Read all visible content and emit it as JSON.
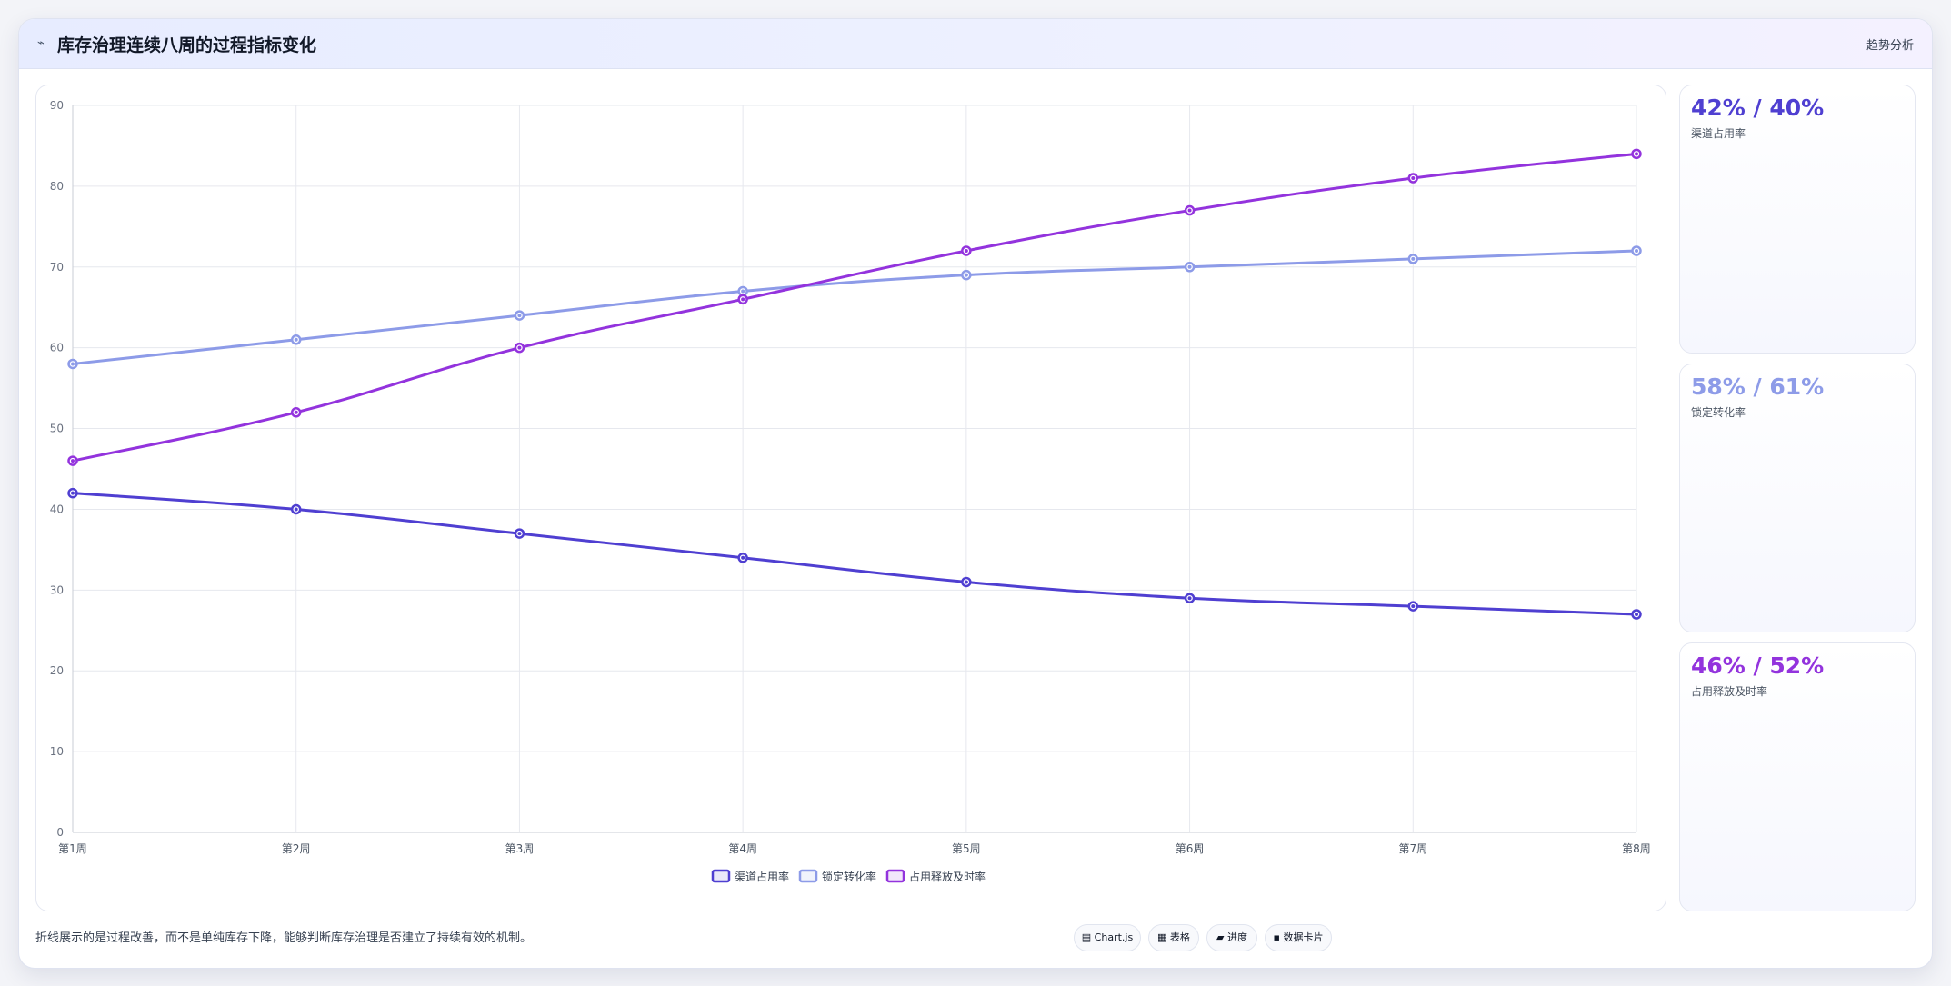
{
  "header": {
    "icon": "chart-icon",
    "title": "库存治理连续八周的过程指标变化",
    "tag": "趋势分析"
  },
  "chart_data": {
    "type": "line",
    "categories": [
      "第1周",
      "第2周",
      "第3周",
      "第4周",
      "第5周",
      "第6周",
      "第7周",
      "第8周"
    ],
    "ylim": [
      0,
      90
    ],
    "yticks": [
      0,
      10,
      20,
      30,
      40,
      50,
      60,
      70,
      80,
      90
    ],
    "grid": true,
    "legend": "bottom",
    "series": [
      {
        "name": "渠道占用率",
        "color": "#4f3fd1",
        "values": [
          42,
          40,
          37,
          34,
          31,
          29,
          28,
          27
        ]
      },
      {
        "name": "锁定转化率",
        "color": "#8d9be8",
        "values": [
          58,
          61,
          64,
          67,
          69,
          70,
          71,
          72
        ]
      },
      {
        "name": "占用释放及时率",
        "color": "#9333dd",
        "values": [
          46,
          52,
          60,
          66,
          72,
          77,
          81,
          84
        ]
      }
    ]
  },
  "side_cards": [
    {
      "value": "42% / 40%",
      "label": "渠道占用率",
      "color": "#4f3fd1"
    },
    {
      "value": "58% / 61%",
      "label": "锁定转化率",
      "color": "#8d9be8"
    },
    {
      "value": "46% / 52%",
      "label": "占用释放及时率",
      "color": "#9333dd"
    }
  ],
  "footnote": "折线展示的是过程改善，而不是单纯库存下降，能够判断库存治理是否建立了持续有效的机制。",
  "chips": [
    "▤ Chart.js",
    "▦ 表格",
    "▰ 进度",
    "▪ 数据卡片"
  ]
}
